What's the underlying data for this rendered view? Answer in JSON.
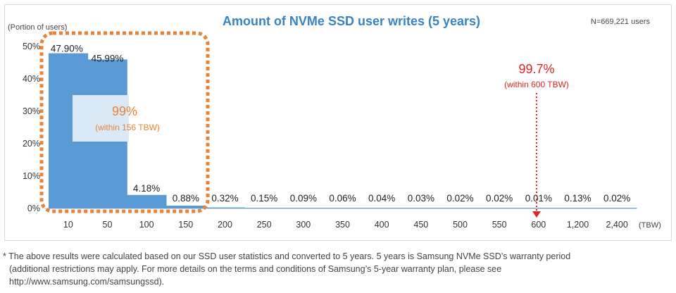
{
  "chart_data": {
    "type": "bar",
    "title": "Amount of NVMe SSD user writes (5 years)",
    "sample_size": "N=669,221 users",
    "ylabel": "(Portion of users)",
    "xunit": "(TBW)",
    "ylim": [
      0,
      52
    ],
    "yticks": [
      "0%",
      "10%",
      "20%",
      "30%",
      "40%",
      "50%"
    ],
    "categories": [
      "10",
      "50",
      "100",
      "150",
      "200",
      "250",
      "300",
      "350",
      "400",
      "450",
      "500",
      "550",
      "600",
      "1,200",
      "2,400"
    ],
    "values": [
      47.9,
      45.99,
      4.18,
      0.88,
      0.32,
      0.15,
      0.09,
      0.06,
      0.04,
      0.03,
      0.02,
      0.02,
      0.01,
      0.13,
      0.02
    ],
    "value_labels": [
      "47.90%",
      "45.99%",
      "4.18%",
      "0.88%",
      "0.32%",
      "0.15%",
      "0.09%",
      "0.06%",
      "0.04%",
      "0.03%",
      "0.02%",
      "0.02%",
      "0.01%",
      "0.13%",
      "0.02%"
    ],
    "bar_color": "#5b9bd5",
    "grid": false,
    "annotations": [
      {
        "value": "99%",
        "note": "(within 156 TBW)",
        "color": "#e8833a"
      },
      {
        "value": "99.7%",
        "note": "(within 600 TBW)",
        "color": "#e02424"
      }
    ]
  },
  "footnote": {
    "line1": "* The above results were calculated based on our SSD user statistics and converted to 5 years. 5 years is Samsung NVMe SSD’s warranty period",
    "line2": "(additional restrictions may apply. For more details on the terms and conditions of Samsung’s 5-year warranty plan, please see",
    "line3": "http://www.samsung.com/samsungssd)."
  }
}
